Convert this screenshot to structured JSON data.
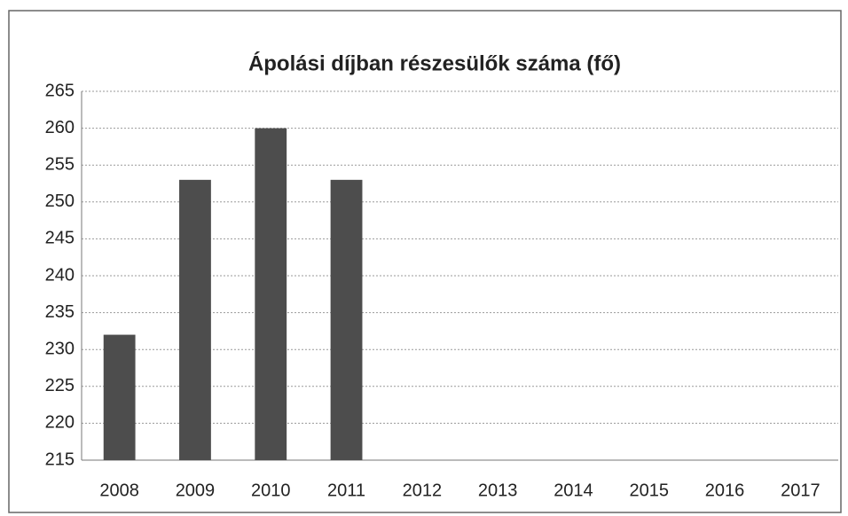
{
  "chart_data": {
    "type": "bar",
    "title": "Ápolási díjban részesülők száma (fő)",
    "categories": [
      "2008",
      "2009",
      "2010",
      "2011",
      "2012",
      "2013",
      "2014",
      "2015",
      "2016",
      "2017"
    ],
    "values": [
      232,
      253,
      260,
      253,
      null,
      null,
      null,
      null,
      null,
      null
    ],
    "color": "#4d4d4d",
    "ylim": [
      215,
      265
    ],
    "yticks": [
      215,
      220,
      225,
      230,
      235,
      240,
      245,
      250,
      255,
      260,
      265
    ],
    "grid": true
  }
}
